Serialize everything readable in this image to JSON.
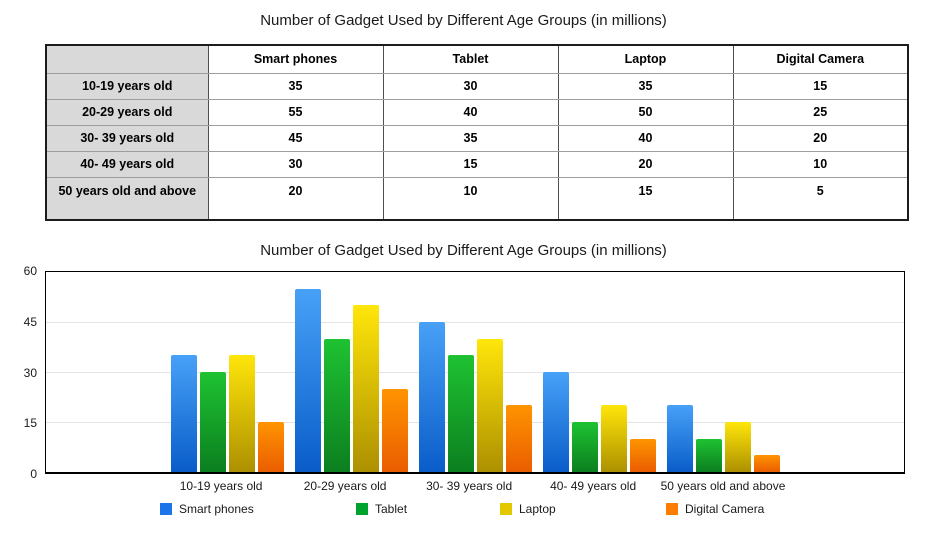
{
  "table_section": {
    "title": "Number of Gadget Used by Different Age Groups (in millions)",
    "columns": [
      "",
      "Smart phones",
      "Tablet",
      "Laptop",
      "Digital Camera"
    ],
    "rows": [
      {
        "label": "10-19 years old",
        "values": [
          "35",
          "30",
          "35",
          "15"
        ]
      },
      {
        "label": "20-29 years old",
        "values": [
          "55",
          "40",
          "50",
          "25"
        ]
      },
      {
        "label": "30- 39 years old",
        "values": [
          "45",
          "35",
          "40",
          "20"
        ]
      },
      {
        "label": "40- 49 years old",
        "values": [
          "30",
          "15",
          "20",
          "10"
        ]
      },
      {
        "label": "50 years old and above",
        "values": [
          "20",
          "10",
          "15",
          "5"
        ]
      }
    ]
  },
  "chart_section": {
    "title": "Number of Gadget Used by Different Age Groups (in millions)"
  },
  "chart_data": {
    "type": "bar",
    "title": "Number of Gadget Used by Different Age Groups (in millions)",
    "categories": [
      "10-19 years old",
      "20-29 years old",
      "30- 39 years old",
      "40- 49 years old",
      "50 years old and above"
    ],
    "series": [
      {
        "name": "Smart phones",
        "values": [
          35,
          55,
          45,
          30,
          20
        ],
        "color_top": "#47a1f7",
        "color_bottom": "#0a5dc9",
        "legend_color": "#1b74e8"
      },
      {
        "name": "Tablet",
        "values": [
          30,
          40,
          35,
          15,
          10
        ],
        "color_top": "#1ec232",
        "color_bottom": "#0c7f1f",
        "legend_color": "#00a32e"
      },
      {
        "name": "Laptop",
        "values": [
          35,
          50,
          40,
          20,
          15
        ],
        "color_top": "#ffe60a",
        "color_bottom": "#ad9000",
        "legend_color": "#e3c800"
      },
      {
        "name": "Digital Camera",
        "values": [
          15,
          25,
          20,
          10,
          5
        ],
        "color_top": "#ff9400",
        "color_bottom": "#ea5d00",
        "legend_color": "#ff7d00"
      }
    ],
    "xlabel": "",
    "ylabel": "",
    "yticks": [
      0,
      15,
      30,
      45,
      60
    ],
    "ylim": [
      0,
      60
    ],
    "grid": true,
    "legend_position": "bottom"
  }
}
